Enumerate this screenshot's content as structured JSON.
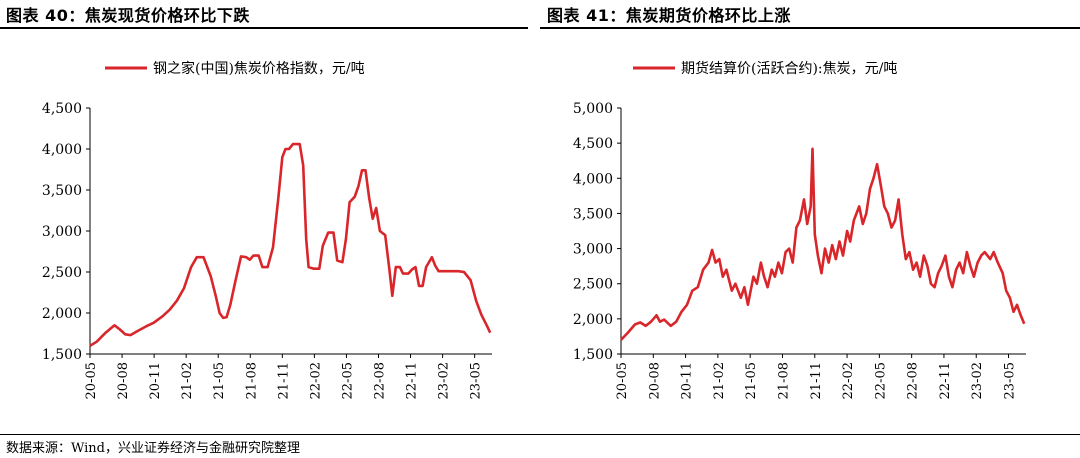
{
  "header": {
    "left_title": "图表 40：焦炭现货价格环比下跌",
    "right_title": "图表 41：焦炭期货价格环比上涨"
  },
  "footer": {
    "source": "数据来源：Wind，兴业证券经济与金融研究院整理"
  },
  "colors": {
    "series": "#d9262b",
    "axis": "#000000"
  },
  "chart_data": [
    {
      "type": "line",
      "title": "图表 40：焦炭现货价格环比下跌",
      "legend_position": "top-center",
      "grid": false,
      "ylim": [
        1500,
        4500
      ],
      "yticks": [
        "1,500",
        "2,000",
        "2,500",
        "3,000",
        "3,500",
        "4,000",
        "4,500"
      ],
      "ytick_values": [
        1500,
        2000,
        2500,
        3000,
        3500,
        4000,
        4500
      ],
      "xticks": [
        "20-05",
        "20-08",
        "20-11",
        "21-02",
        "21-05",
        "21-08",
        "21-11",
        "22-02",
        "22-05",
        "22-08",
        "22-11",
        "23-02",
        "23-05"
      ],
      "x_range": [
        "2020-05",
        "2023-06"
      ],
      "series": [
        {
          "name": "钢之家(中国)焦炭价格指数，元/吨",
          "points": [
            [
              "2020-05-01",
              1600
            ],
            [
              "2020-05-20",
              1650
            ],
            [
              "2020-06-15",
              1760
            ],
            [
              "2020-07-10",
              1850
            ],
            [
              "2020-07-25",
              1800
            ],
            [
              "2020-08-10",
              1740
            ],
            [
              "2020-08-25",
              1730
            ],
            [
              "2020-09-15",
              1780
            ],
            [
              "2020-10-10",
              1840
            ],
            [
              "2020-10-30",
              1880
            ],
            [
              "2020-11-25",
              1960
            ],
            [
              "2020-12-15",
              2040
            ],
            [
              "2021-01-05",
              2150
            ],
            [
              "2021-01-25",
              2300
            ],
            [
              "2021-02-15",
              2560
            ],
            [
              "2021-03-01",
              2680
            ],
            [
              "2021-03-20",
              2680
            ],
            [
              "2021-04-10",
              2450
            ],
            [
              "2021-04-25",
              2200
            ],
            [
              "2021-05-05",
              2000
            ],
            [
              "2021-05-15",
              1940
            ],
            [
              "2021-05-25",
              1950
            ],
            [
              "2021-06-05",
              2100
            ],
            [
              "2021-06-20",
              2400
            ],
            [
              "2021-07-05",
              2690
            ],
            [
              "2021-07-20",
              2680
            ],
            [
              "2021-07-30",
              2650
            ],
            [
              "2021-08-10",
              2700
            ],
            [
              "2021-08-25",
              2700
            ],
            [
              "2021-09-05",
              2560
            ],
            [
              "2021-09-20",
              2560
            ],
            [
              "2021-10-05",
              2800
            ],
            [
              "2021-10-20",
              3400
            ],
            [
              "2021-11-01",
              3900
            ],
            [
              "2021-11-10",
              4000
            ],
            [
              "2021-11-20",
              4000
            ],
            [
              "2021-12-01",
              4060
            ],
            [
              "2021-12-20",
              4060
            ],
            [
              "2021-12-30",
              3800
            ],
            [
              "2022-01-08",
              2900
            ],
            [
              "2022-01-15",
              2560
            ],
            [
              "2022-01-30",
              2540
            ],
            [
              "2022-02-15",
              2540
            ],
            [
              "2022-02-25",
              2820
            ],
            [
              "2022-03-10",
              2980
            ],
            [
              "2022-03-25",
              2980
            ],
            [
              "2022-04-05",
              2640
            ],
            [
              "2022-04-20",
              2620
            ],
            [
              "2022-04-30",
              2900
            ],
            [
              "2022-05-10",
              3350
            ],
            [
              "2022-05-25",
              3420
            ],
            [
              "2022-06-05",
              3550
            ],
            [
              "2022-06-15",
              3740
            ],
            [
              "2022-06-25",
              3740
            ],
            [
              "2022-07-05",
              3400
            ],
            [
              "2022-07-15",
              3150
            ],
            [
              "2022-07-25",
              3280
            ],
            [
              "2022-08-05",
              3000
            ],
            [
              "2022-08-20",
              2950
            ],
            [
              "2022-09-01",
              2550
            ],
            [
              "2022-09-10",
              2210
            ],
            [
              "2022-09-20",
              2560
            ],
            [
              "2022-10-01",
              2560
            ],
            [
              "2022-10-10",
              2480
            ],
            [
              "2022-10-25",
              2480
            ],
            [
              "2022-11-05",
              2530
            ],
            [
              "2022-11-15",
              2560
            ],
            [
              "2022-11-25",
              2330
            ],
            [
              "2022-12-05",
              2330
            ],
            [
              "2022-12-15",
              2560
            ],
            [
              "2023-01-01",
              2680
            ],
            [
              "2023-01-10",
              2580
            ],
            [
              "2023-01-20",
              2510
            ],
            [
              "2023-02-15",
              2510
            ],
            [
              "2023-03-15",
              2510
            ],
            [
              "2023-04-01",
              2500
            ],
            [
              "2023-04-20",
              2400
            ],
            [
              "2023-05-05",
              2150
            ],
            [
              "2023-05-20",
              1980
            ],
            [
              "2023-06-05",
              1850
            ],
            [
              "2023-06-15",
              1760
            ]
          ]
        }
      ]
    },
    {
      "type": "line",
      "title": "图表 41：焦炭期货价格环比上涨",
      "legend_position": "top-center",
      "grid": false,
      "ylim": [
        1500,
        5000
      ],
      "yticks": [
        "1,500",
        "2,000",
        "2,500",
        "3,000",
        "3,500",
        "4,000",
        "4,500",
        "5,000"
      ],
      "ytick_values": [
        1500,
        2000,
        2500,
        3000,
        3500,
        4000,
        4500,
        5000
      ],
      "xticks": [
        "20-05",
        "20-08",
        "20-11",
        "21-02",
        "21-05",
        "21-08",
        "21-11",
        "22-02",
        "22-05",
        "22-08",
        "22-11",
        "23-02",
        "23-05"
      ],
      "x_range": [
        "2020-05",
        "2023-06"
      ],
      "series": [
        {
          "name": "期货结算价(活跃合约):焦炭，元/吨",
          "points": [
            [
              "2020-05-01",
              1700
            ],
            [
              "2020-05-20",
              1800
            ],
            [
              "2020-06-10",
              1920
            ],
            [
              "2020-06-25",
              1950
            ],
            [
              "2020-07-10",
              1900
            ],
            [
              "2020-07-25",
              1960
            ],
            [
              "2020-08-10",
              2050
            ],
            [
              "2020-08-20",
              1960
            ],
            [
              "2020-09-01",
              1990
            ],
            [
              "2020-09-20",
              1900
            ],
            [
              "2020-10-05",
              1960
            ],
            [
              "2020-10-20",
              2100
            ],
            [
              "2020-11-05",
              2200
            ],
            [
              "2020-11-20",
              2400
            ],
            [
              "2020-12-05",
              2450
            ],
            [
              "2020-12-20",
              2700
            ],
            [
              "2021-01-05",
              2800
            ],
            [
              "2021-01-15",
              2980
            ],
            [
              "2021-01-25",
              2800
            ],
            [
              "2021-02-05",
              2850
            ],
            [
              "2021-02-15",
              2600
            ],
            [
              "2021-02-25",
              2700
            ],
            [
              "2021-03-10",
              2400
            ],
            [
              "2021-03-20",
              2500
            ],
            [
              "2021-04-05",
              2300
            ],
            [
              "2021-04-15",
              2450
            ],
            [
              "2021-04-25",
              2200
            ],
            [
              "2021-05-10",
              2600
            ],
            [
              "2021-05-20",
              2500
            ],
            [
              "2021-06-01",
              2800
            ],
            [
              "2021-06-10",
              2600
            ],
            [
              "2021-06-20",
              2450
            ],
            [
              "2021-07-01",
              2700
            ],
            [
              "2021-07-10",
              2600
            ],
            [
              "2021-07-20",
              2800
            ],
            [
              "2021-07-30",
              2650
            ],
            [
              "2021-08-10",
              2950
            ],
            [
              "2021-08-20",
              3000
            ],
            [
              "2021-08-30",
              2800
            ],
            [
              "2021-09-10",
              3300
            ],
            [
              "2021-09-20",
              3400
            ],
            [
              "2021-10-01",
              3700
            ],
            [
              "2021-10-10",
              3350
            ],
            [
              "2021-10-20",
              3600
            ],
            [
              "2021-10-25",
              4420
            ],
            [
              "2021-11-01",
              3200
            ],
            [
              "2021-11-10",
              2900
            ],
            [
              "2021-11-20",
              2650
            ],
            [
              "2021-11-30",
              3000
            ],
            [
              "2021-12-10",
              2800
            ],
            [
              "2021-12-20",
              3050
            ],
            [
              "2021-12-30",
              2850
            ],
            [
              "2022-01-10",
              3100
            ],
            [
              "2022-01-20",
              2900
            ],
            [
              "2022-02-01",
              3250
            ],
            [
              "2022-02-10",
              3100
            ],
            [
              "2022-02-20",
              3400
            ],
            [
              "2022-03-05",
              3600
            ],
            [
              "2022-03-15",
              3350
            ],
            [
              "2022-03-25",
              3500
            ],
            [
              "2022-04-05",
              3850
            ],
            [
              "2022-04-15",
              4000
            ],
            [
              "2022-04-25",
              4200
            ],
            [
              "2022-05-05",
              3900
            ],
            [
              "2022-05-15",
              3600
            ],
            [
              "2022-05-25",
              3500
            ],
            [
              "2022-06-05",
              3300
            ],
            [
              "2022-06-15",
              3400
            ],
            [
              "2022-06-25",
              3700
            ],
            [
              "2022-07-05",
              3200
            ],
            [
              "2022-07-15",
              2850
            ],
            [
              "2022-07-25",
              2950
            ],
            [
              "2022-08-05",
              2700
            ],
            [
              "2022-08-15",
              2800
            ],
            [
              "2022-08-25",
              2600
            ],
            [
              "2022-09-05",
              2900
            ],
            [
              "2022-09-15",
              2750
            ],
            [
              "2022-09-25",
              2500
            ],
            [
              "2022-10-05",
              2450
            ],
            [
              "2022-10-15",
              2650
            ],
            [
              "2022-10-25",
              2750
            ],
            [
              "2022-11-05",
              2900
            ],
            [
              "2022-11-15",
              2600
            ],
            [
              "2022-11-25",
              2450
            ],
            [
              "2022-12-05",
              2700
            ],
            [
              "2022-12-15",
              2800
            ],
            [
              "2022-12-25",
              2650
            ],
            [
              "2023-01-05",
              2950
            ],
            [
              "2023-01-15",
              2750
            ],
            [
              "2023-01-25",
              2600
            ],
            [
              "2023-02-05",
              2800
            ],
            [
              "2023-02-15",
              2900
            ],
            [
              "2023-02-25",
              2950
            ],
            [
              "2023-03-10",
              2850
            ],
            [
              "2023-03-20",
              2950
            ],
            [
              "2023-04-01",
              2800
            ],
            [
              "2023-04-15",
              2650
            ],
            [
              "2023-04-25",
              2400
            ],
            [
              "2023-05-05",
              2300
            ],
            [
              "2023-05-15",
              2100
            ],
            [
              "2023-05-25",
              2200
            ],
            [
              "2023-06-05",
              2050
            ],
            [
              "2023-06-15",
              1930
            ]
          ]
        }
      ]
    }
  ]
}
